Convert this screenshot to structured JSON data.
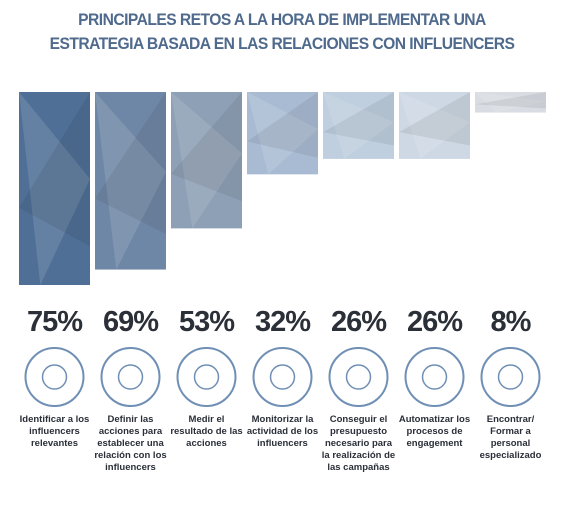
{
  "chart_data": {
    "type": "bar",
    "title": "PRINCIPALES RETOS A LA HORA DE IMPLEMENTAR UNA ESTRATEGIA BASADA EN LAS RELACIONES CON INFLUENCERS",
    "categories": [
      "Identificar a los influencers relevantes",
      "Definir las acciones para establecer una relación con los influencers",
      "Medir el resultado de las acciones",
      "Monitorizar la actividad de los influencers",
      "Conseguir el presupuesto necesario para la realización de las campañas",
      "Automatizar los procesos de engagement",
      "Encontrar/ Formar a personal especializado"
    ],
    "values": [
      75,
      69,
      53,
      32,
      26,
      26,
      8
    ],
    "value_labels": [
      "75%",
      "69%",
      "53%",
      "32%",
      "26%",
      "26%",
      "8%"
    ],
    "colors": [
      "#4f6f96",
      "#6f87a6",
      "#8ea0b6",
      "#a9bbd3",
      "#bfcfdf",
      "#cdd8e4",
      "#d9dde3"
    ]
  }
}
